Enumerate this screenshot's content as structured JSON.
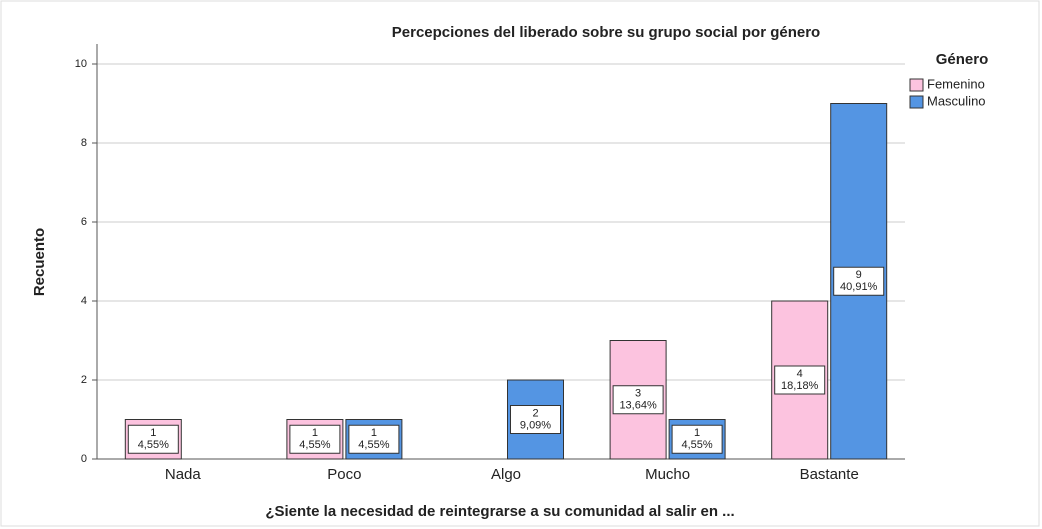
{
  "chart_data": {
    "type": "bar",
    "title": "Percepciones del liberado sobre su grupo social por género",
    "x_label": "¿Siente la necesidad de reintegrarse a su comunidad al salir en ...",
    "y_label": "Recuento",
    "legend_title": "Género",
    "legend": "right",
    "grid": true,
    "categories": [
      "Nada",
      "Poco",
      "Algo",
      "Mucho",
      "Bastante"
    ],
    "series": [
      {
        "name": "Femenino",
        "color": "#fcc3df",
        "values": [
          1,
          1,
          null,
          3,
          4
        ],
        "value_labels": [
          "1",
          "1",
          null,
          "3",
          "4"
        ],
        "percentages": [
          4.55,
          4.55,
          null,
          13.64,
          18.18
        ],
        "percentage_labels": [
          "4,55%",
          "4,55%",
          null,
          "13,64%",
          "18,18%"
        ]
      },
      {
        "name": "Masculino",
        "color": "#5495e3",
        "values": [
          null,
          1,
          2,
          1,
          9
        ],
        "value_labels": [
          null,
          "1",
          "2",
          "1",
          "9"
        ],
        "percentages": [
          null,
          4.55,
          9.09,
          4.55,
          40.91
        ],
        "percentage_labels": [
          null,
          "4,55%",
          "9,09%",
          "4,55%",
          "40,91%"
        ]
      }
    ],
    "ylim": [
      0,
      10
    ],
    "yticks": [
      0,
      2,
      4,
      6,
      8,
      10
    ]
  }
}
